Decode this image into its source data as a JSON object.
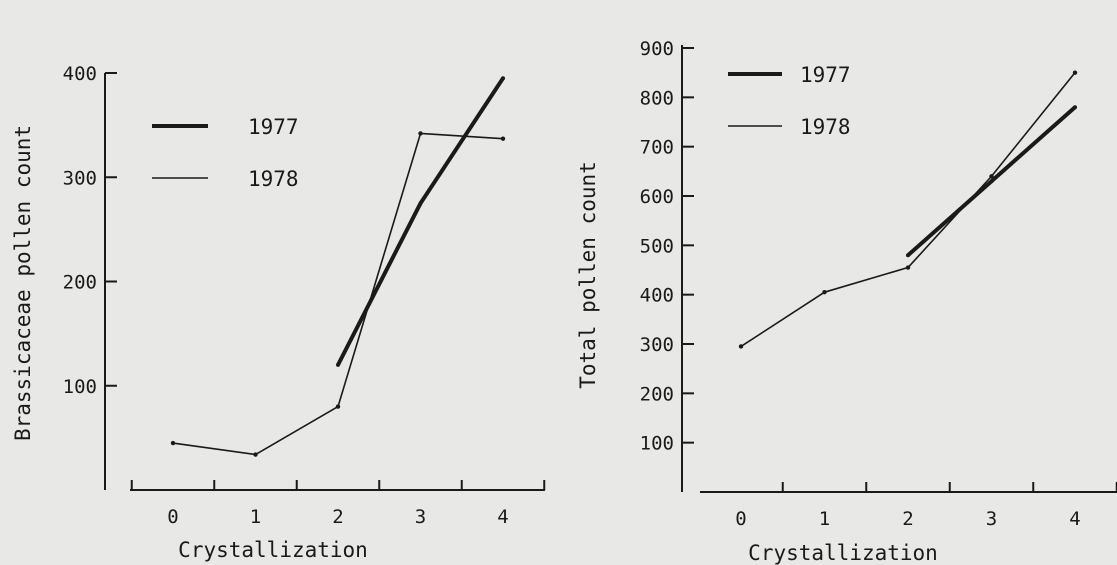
{
  "chart_data": [
    {
      "type": "line",
      "title": "",
      "xlabel": "Crystallization",
      "ylabel": "Brassicaceae  pollen  count",
      "x": [
        0,
        1,
        2,
        3,
        4
      ],
      "xlim": [
        -0.5,
        4.5
      ],
      "ylim": [
        0,
        400
      ],
      "yticks": [
        100,
        200,
        300,
        400
      ],
      "legend": "top-left",
      "grid": false,
      "series": [
        {
          "name": "1977",
          "style": "thick",
          "x": [
            2,
            3,
            4
          ],
          "values": [
            120,
            275,
            395
          ]
        },
        {
          "name": "1978",
          "style": "thin",
          "x": [
            0,
            1,
            2,
            3,
            4
          ],
          "values": [
            45,
            34,
            80,
            342,
            337
          ]
        }
      ]
    },
    {
      "type": "line",
      "title": "",
      "xlabel": "Crystallization",
      "ylabel": "Total  pollen  count",
      "x": [
        0,
        1,
        2,
        3,
        4
      ],
      "xlim": [
        -0.5,
        4.5
      ],
      "ylim": [
        0,
        900
      ],
      "yticks": [
        100,
        200,
        300,
        400,
        500,
        600,
        700,
        800,
        900
      ],
      "legend": "top-left",
      "grid": false,
      "series": [
        {
          "name": "1977",
          "style": "thick",
          "x": [
            2,
            3,
            4
          ],
          "values": [
            480,
            630,
            780
          ]
        },
        {
          "name": "1978",
          "style": "thin",
          "x": [
            0,
            1,
            2,
            3,
            4
          ],
          "values": [
            295,
            405,
            455,
            640,
            850
          ]
        }
      ]
    }
  ],
  "colors": {
    "background": "#e8e8e6",
    "ink": "#1a1a1a"
  }
}
